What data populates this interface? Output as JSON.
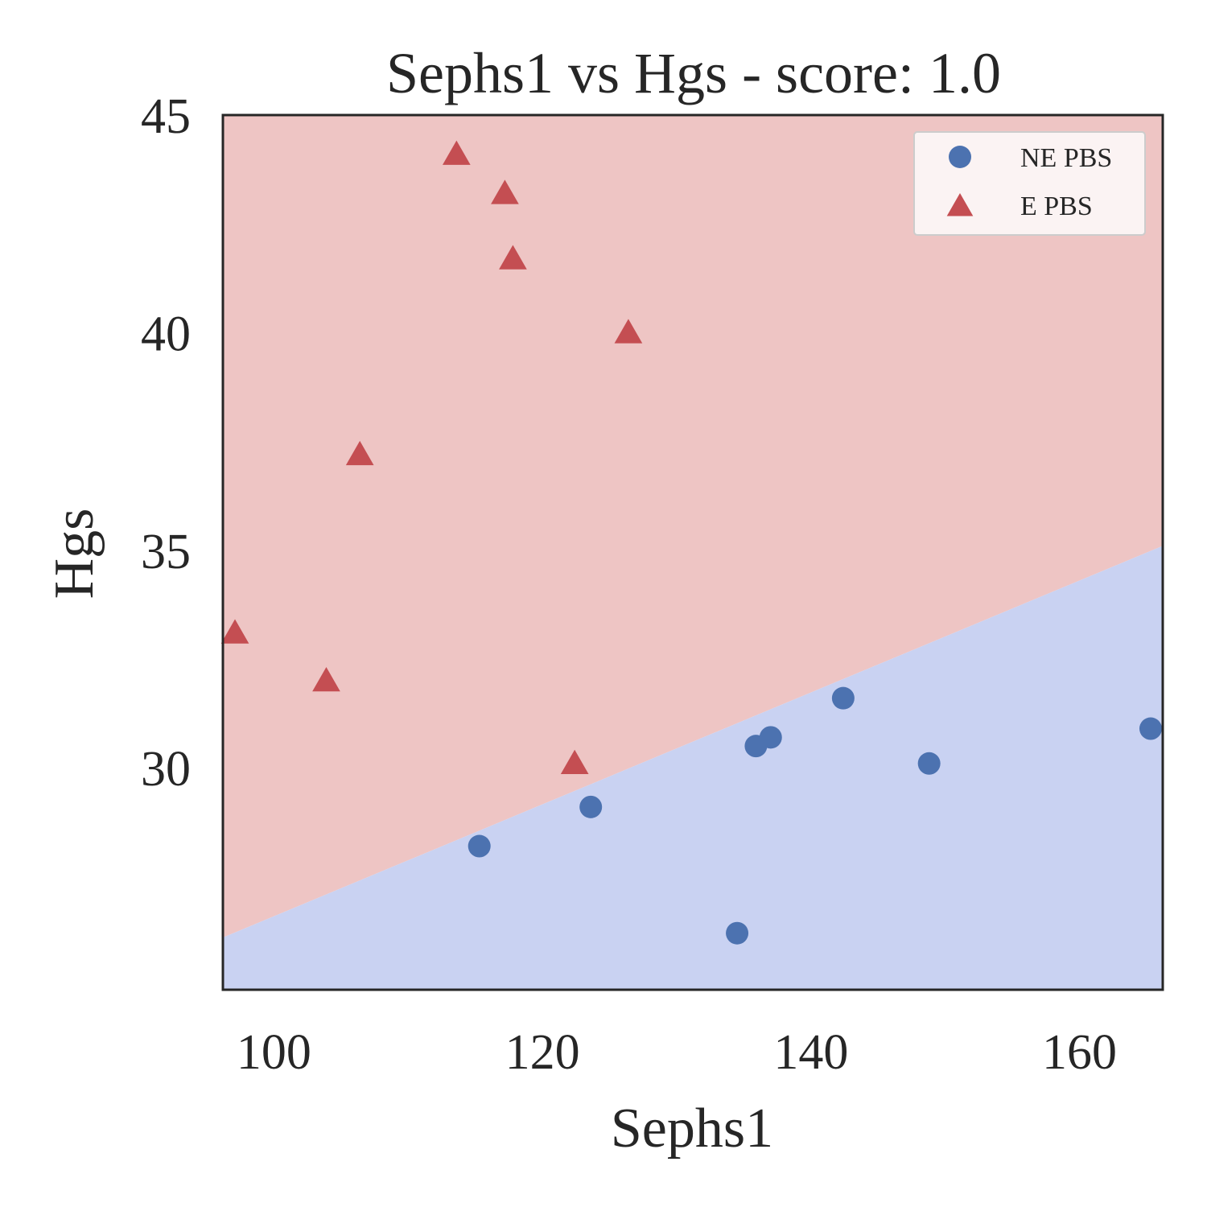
{
  "chart_data": {
    "type": "scatter",
    "title": "Sephs1 vs Hgs - score: 1.0",
    "xlabel": "Sephs1",
    "ylabel": "Hgs",
    "xlim": [
      96.2,
      166.2
    ],
    "ylim": [
      24.9,
      45
    ],
    "xticks": [
      100,
      120,
      140,
      160
    ],
    "yticks": [
      30,
      35,
      40,
      45
    ],
    "grid": false,
    "legend_position": "top-right",
    "decision_boundary": {
      "points": [
        [
          96.2,
          26.1
        ],
        [
          166.2,
          35.1
        ]
      ],
      "above_color": "#eec5c4",
      "below_color": "#c9d2f2"
    },
    "series": [
      {
        "name": "NE PBS",
        "marker": "circle",
        "color": "#4c72b0",
        "points": [
          [
            115.3,
            28.2
          ],
          [
            123.6,
            29.1
          ],
          [
            134.5,
            26.2
          ],
          [
            135.9,
            30.5
          ],
          [
            137.0,
            30.7
          ],
          [
            142.4,
            31.6
          ],
          [
            148.8,
            30.1
          ],
          [
            165.3,
            30.9
          ]
        ]
      },
      {
        "name": "E PBS",
        "marker": "triangle",
        "color": "#c44e52",
        "points": [
          [
            97.1,
            33.1
          ],
          [
            103.9,
            32.0
          ],
          [
            106.4,
            37.2
          ],
          [
            113.6,
            44.1
          ],
          [
            117.2,
            43.2
          ],
          [
            117.8,
            41.7
          ],
          [
            122.4,
            30.1
          ],
          [
            126.4,
            40.0
          ]
        ]
      }
    ]
  }
}
